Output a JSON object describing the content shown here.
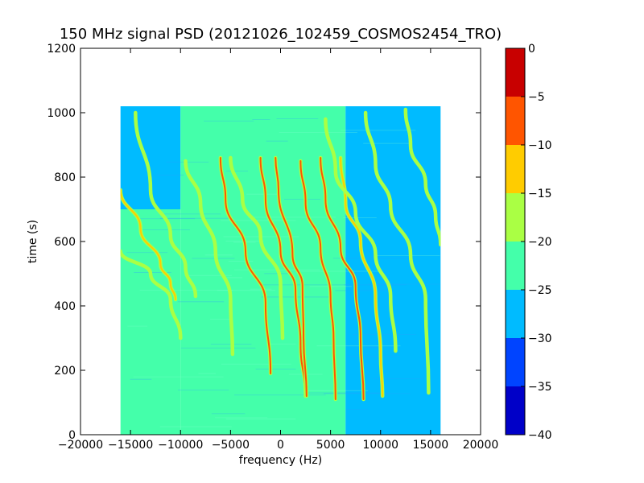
{
  "chart_data": {
    "type": "heatmap",
    "title": "150 MHz signal PSD (20121026_102459_COSMOS2454_TRO)",
    "xlabel": "frequency (Hz)",
    "ylabel": "time (s)",
    "xlim": [
      -20000,
      20000
    ],
    "ylim": [
      0,
      1200
    ],
    "xticks": [
      -20000,
      -15000,
      -10000,
      -5000,
      0,
      5000,
      10000,
      15000,
      20000
    ],
    "yticks": [
      0,
      200,
      400,
      600,
      800,
      1000,
      1200
    ],
    "extent": {
      "x": [
        -16000,
        16000
      ],
      "y": [
        0,
        1020
      ]
    },
    "background_regions": [
      {
        "x": [
          -16000,
          -10000
        ],
        "y": [
          700,
          1020
        ],
        "level": -27
      },
      {
        "x": [
          -16000,
          -10000
        ],
        "y": [
          0,
          700
        ],
        "level": -23
      },
      {
        "x": [
          -10000,
          6500
        ],
        "y": [
          0,
          1020
        ],
        "level": -22
      },
      {
        "x": [
          6500,
          16000
        ],
        "y": [
          0,
          1020
        ],
        "level": -28
      }
    ],
    "traces": [
      {
        "peak": -12,
        "points": [
          [
            -16000,
            760
          ],
          [
            -14000,
            640
          ],
          [
            -12000,
            530
          ],
          [
            -11000,
            470
          ],
          [
            -10500,
            420
          ]
        ]
      },
      {
        "peak": -18,
        "points": [
          [
            -16000,
            570
          ],
          [
            -13000,
            500
          ],
          [
            -11000,
            420
          ],
          [
            -10000,
            300
          ]
        ]
      },
      {
        "peak": -18,
        "points": [
          [
            -14500,
            1000
          ],
          [
            -13000,
            760
          ],
          [
            -11000,
            620
          ],
          [
            -9500,
            520
          ],
          [
            -8500,
            430
          ]
        ]
      },
      {
        "peak": -15,
        "points": [
          [
            -9500,
            850
          ],
          [
            -8000,
            720
          ],
          [
            -6500,
            570
          ],
          [
            -5000,
            420
          ],
          [
            -4800,
            250
          ]
        ]
      },
      {
        "peak": -8,
        "points": [
          [
            -6000,
            860
          ],
          [
            -5500,
            730
          ],
          [
            -3500,
            570
          ],
          [
            -1500,
            410
          ],
          [
            -1000,
            190
          ]
        ]
      },
      {
        "peak": -15,
        "points": [
          [
            -5000,
            860
          ],
          [
            -3800,
            730
          ],
          [
            -2000,
            620
          ],
          [
            0,
            470
          ],
          [
            200,
            300
          ]
        ]
      },
      {
        "peak": -8,
        "points": [
          [
            -2000,
            860
          ],
          [
            -1500,
            730
          ],
          [
            0,
            570
          ],
          [
            1500,
            450
          ],
          [
            2000,
            280
          ],
          [
            2500,
            120
          ]
        ]
      },
      {
        "peak": -5,
        "points": [
          [
            -500,
            860
          ],
          [
            -200,
            760
          ],
          [
            1200,
            560
          ],
          [
            2200,
            460
          ],
          [
            2300,
            300
          ],
          [
            2600,
            120
          ]
        ]
      },
      {
        "peak": -8,
        "points": [
          [
            2000,
            850
          ],
          [
            2500,
            720
          ],
          [
            4000,
            580
          ],
          [
            5000,
            430
          ],
          [
            5300,
            300
          ],
          [
            5500,
            110
          ]
        ]
      },
      {
        "peak": -5,
        "points": [
          [
            4000,
            860
          ],
          [
            4500,
            730
          ],
          [
            6000,
            580
          ],
          [
            7500,
            460
          ],
          [
            8000,
            300
          ],
          [
            8300,
            110
          ]
        ]
      },
      {
        "peak": -10,
        "points": [
          [
            6000,
            860
          ],
          [
            6500,
            720
          ],
          [
            8000,
            600
          ],
          [
            9500,
            430
          ],
          [
            10000,
            250
          ],
          [
            10200,
            120
          ]
        ]
      },
      {
        "peak": -15,
        "points": [
          [
            4500,
            980
          ],
          [
            5500,
            820
          ],
          [
            7500,
            690
          ],
          [
            9500,
            560
          ],
          [
            11000,
            430
          ],
          [
            11500,
            260
          ]
        ]
      },
      {
        "peak": -18,
        "points": [
          [
            8500,
            1000
          ],
          [
            9500,
            840
          ],
          [
            11000,
            710
          ],
          [
            13000,
            560
          ],
          [
            14500,
            420
          ],
          [
            14800,
            130
          ]
        ]
      },
      {
        "peak": -18,
        "points": [
          [
            12500,
            1010
          ],
          [
            13000,
            900
          ],
          [
            14500,
            780
          ],
          [
            15500,
            680
          ],
          [
            16000,
            590
          ]
        ]
      }
    ],
    "colorbar": {
      "min": -40,
      "max": 0,
      "ticks": [
        0,
        -5,
        -10,
        -15,
        -20,
        -25,
        -30,
        -35,
        -40
      ],
      "levels": [
        {
          "from": -40,
          "to": -35,
          "color": "#0000c8"
        },
        {
          "from": -35,
          "to": -30,
          "color": "#0044ff"
        },
        {
          "from": -30,
          "to": -25,
          "color": "#00bbff"
        },
        {
          "from": -25,
          "to": -20,
          "color": "#44ffaa"
        },
        {
          "from": -20,
          "to": -15,
          "color": "#aaff44"
        },
        {
          "from": -15,
          "to": -10,
          "color": "#ffcc00"
        },
        {
          "from": -10,
          "to": -5,
          "color": "#ff5500"
        },
        {
          "from": -5,
          "to": 0,
          "color": "#c80000"
        }
      ]
    }
  }
}
